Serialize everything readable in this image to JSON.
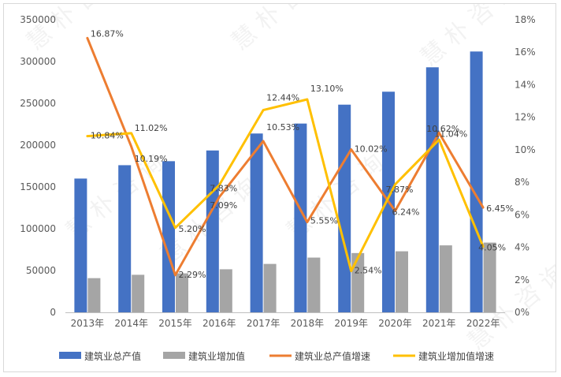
{
  "chart_data": {
    "type": "bar",
    "categories": [
      "2013年",
      "2014年",
      "2015年",
      "2016年",
      "2017年",
      "2018年",
      "2019年",
      "2020年",
      "2021年",
      "2022年"
    ],
    "series": [
      {
        "name": "建筑业总产值",
        "type": "bar",
        "axis": "left",
        "color": "#4472C4",
        "values": [
          160000,
          176000,
          180800,
          193600,
          213900,
          225800,
          248400,
          263900,
          293100,
          311980
        ]
      },
      {
        "name": "建筑业增加值",
        "type": "bar",
        "axis": "left",
        "color": "#A5A5A5",
        "values": [
          40900,
          44900,
          46600,
          51500,
          57900,
          65500,
          70900,
          73000,
          80100,
          83400
        ]
      },
      {
        "name": "建筑业总产值增速",
        "type": "line",
        "axis": "right",
        "color": "#ED7D31",
        "values": [
          16.87,
          10.19,
          2.29,
          7.09,
          10.53,
          5.55,
          10.02,
          6.24,
          11.04,
          6.45
        ],
        "labels": [
          "16.87%",
          "10.19%",
          "2.29%",
          "7.09%",
          "10.53%",
          "5.55%",
          "10.02%",
          "6.24%",
          "11.04%",
          "6.45%"
        ]
      },
      {
        "name": "建筑业增加值增速",
        "type": "line",
        "axis": "right",
        "color": "#FFC000",
        "values": [
          10.84,
          11.02,
          5.2,
          7.83,
          12.44,
          13.1,
          2.54,
          7.87,
          10.62,
          4.05
        ],
        "labels": [
          "10.84%",
          "11.02%",
          "5.20%",
          "7.83%",
          "12.44%",
          "13.10%",
          "2.54%",
          "7.87%",
          "10.62%",
          "4.05%"
        ]
      }
    ],
    "y_left": {
      "min": 0,
      "max": 350000,
      "step": 50000,
      "ticks": [
        "0",
        "50000",
        "100000",
        "150000",
        "200000",
        "250000",
        "300000",
        "350000"
      ]
    },
    "y_right": {
      "min": 0,
      "max": 18,
      "step": 2,
      "ticks": [
        "0%",
        "2%",
        "4%",
        "6%",
        "8%",
        "10%",
        "12%",
        "14%",
        "16%",
        "18%"
      ]
    },
    "grid": false,
    "legend": "bottom",
    "watermark": "慧 朴 咨 询"
  }
}
